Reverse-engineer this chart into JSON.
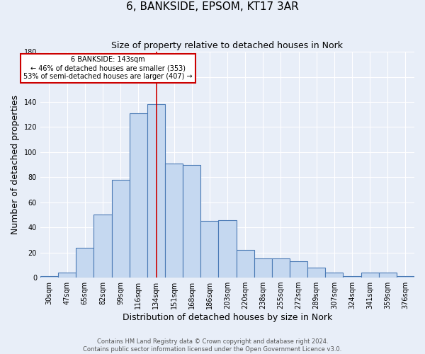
{
  "title": "6, BANKSIDE, EPSOM, KT17 3AR",
  "subtitle": "Size of property relative to detached houses in Nork",
  "xlabel": "Distribution of detached houses by size in Nork",
  "ylabel": "Number of detached properties",
  "footnote1": "Contains HM Land Registry data © Crown copyright and database right 2024.",
  "footnote2": "Contains public sector information licensed under the Open Government Licence v3.0.",
  "categories": [
    "30sqm",
    "47sqm",
    "65sqm",
    "82sqm",
    "99sqm",
    "116sqm",
    "134sqm",
    "151sqm",
    "168sqm",
    "186sqm",
    "203sqm",
    "220sqm",
    "238sqm",
    "255sqm",
    "272sqm",
    "289sqm",
    "307sqm",
    "324sqm",
    "341sqm",
    "359sqm",
    "376sqm"
  ],
  "values": [
    1,
    4,
    24,
    50,
    78,
    131,
    138,
    91,
    90,
    45,
    46,
    22,
    15,
    15,
    13,
    8,
    4,
    1,
    4,
    4,
    1
  ],
  "bar_color": "#c5d8f0",
  "bar_edge_color": "#4a7ab5",
  "bg_color": "#e8eef8",
  "grid_color": "#ffffff",
  "ylim": [
    0,
    180
  ],
  "yticks": [
    0,
    20,
    40,
    60,
    80,
    100,
    120,
    140,
    160,
    180
  ],
  "property_value": 143,
  "property_label": "6 BANKSIDE: 143sqm",
  "annotation_line1": "← 46% of detached houses are smaller (353)",
  "annotation_line2": "53% of semi-detached houses are larger (407) →",
  "annotation_box_color": "#ffffff",
  "annotation_border_color": "#cc0000",
  "vline_color": "#cc0000",
  "title_fontsize": 11,
  "subtitle_fontsize": 9,
  "tick_fontsize": 7,
  "axis_label_fontsize": 9,
  "footnote_fontsize": 6
}
